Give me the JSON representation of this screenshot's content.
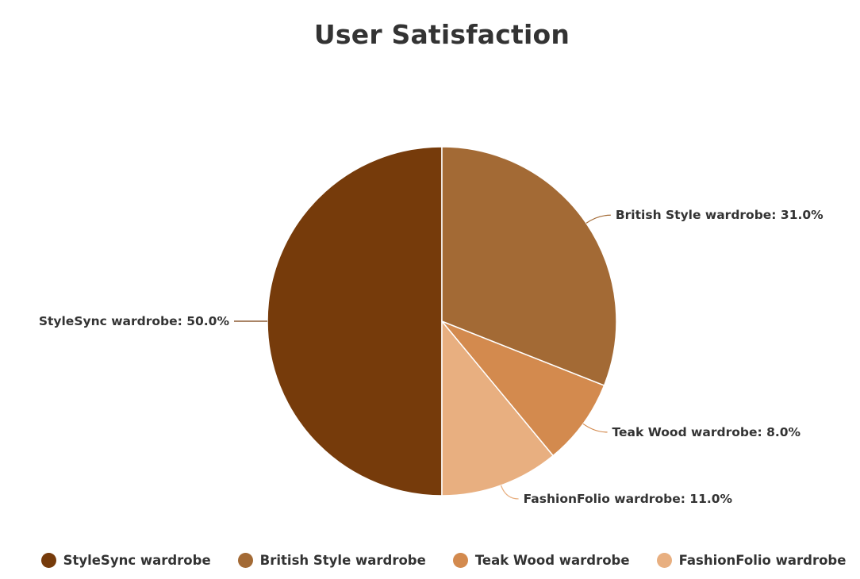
{
  "chart_data": {
    "type": "pie",
    "title": "User Satisfaction",
    "slices": [
      {
        "name": "StyleSync wardrobe",
        "value": 50.0,
        "label": "StyleSync wardrobe: 50.0%",
        "color": "#763b0b"
      },
      {
        "name": "FashionFolio wardrobe",
        "value": 11.0,
        "label": "FashionFolio wardrobe: 11.0%",
        "color": "#e8af80"
      },
      {
        "name": "Teak Wood wardrobe",
        "value": 8.0,
        "label": "Teak Wood wardrobe: 8.0%",
        "color": "#d38a4e"
      },
      {
        "name": "British Style wardrobe",
        "value": 31.0,
        "label": "British Style wardrobe: 31.0%",
        "color": "#a36a35"
      }
    ],
    "legend": {
      "placement": "bottom",
      "items": [
        {
          "name": "StyleSync wardrobe",
          "color": "#763b0b"
        },
        {
          "name": "British Style wardrobe",
          "color": "#a36a35"
        },
        {
          "name": "Teak Wood wardrobe",
          "color": "#d38a4e"
        },
        {
          "name": "FashionFolio wardrobe",
          "color": "#e8af80"
        }
      ]
    }
  }
}
